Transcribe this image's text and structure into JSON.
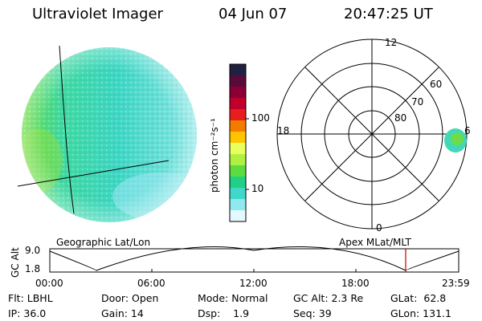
{
  "header": {
    "instrument": "Ultraviolet Imager",
    "date": "04 Jun 07",
    "time": "20:47:25 UT"
  },
  "colorbar": {
    "unit_label": "photon cm⁻²s⁻¹",
    "ticks": [
      "100",
      "10"
    ],
    "colors": [
      "#202040",
      "#5a0a3a",
      "#8a0035",
      "#c0002a",
      "#e61e1e",
      "#f47b00",
      "#ffc400",
      "#e8ff60",
      "#b0f040",
      "#5cdc40",
      "#20d084",
      "#40d8c8",
      "#90e8f0",
      "#e4f8ff"
    ]
  },
  "polar_plot": {
    "mlt_labels": [
      "12",
      "18",
      "6",
      "0"
    ],
    "lat_labels": [
      "60",
      "70",
      "80"
    ]
  },
  "timeline": {
    "left_title": "Geographic Lat/Lon",
    "right_title": "Apex MLat/MLT",
    "axis_label": "GC Alt",
    "y_ticks": [
      "9.0",
      "1.8"
    ],
    "x_ticks": [
      "00:00",
      "06:00",
      "12:00",
      "18:00",
      "23:59"
    ],
    "current_marker_color": "#c00000"
  },
  "info": {
    "row1": {
      "flt": "Flt: LBHL",
      "door": "Door: Open",
      "mode": "Mode: Normal",
      "gcalt": "GC Alt: 2.3 Re",
      "glat": "GLat:  62.8"
    },
    "row2": {
      "ip": "IP: 36.0",
      "gain": "Gain: 14",
      "dsp": "Dsp:    1.9",
      "seq": "Seq: 39",
      "glon": "GLon: 131.1"
    }
  }
}
